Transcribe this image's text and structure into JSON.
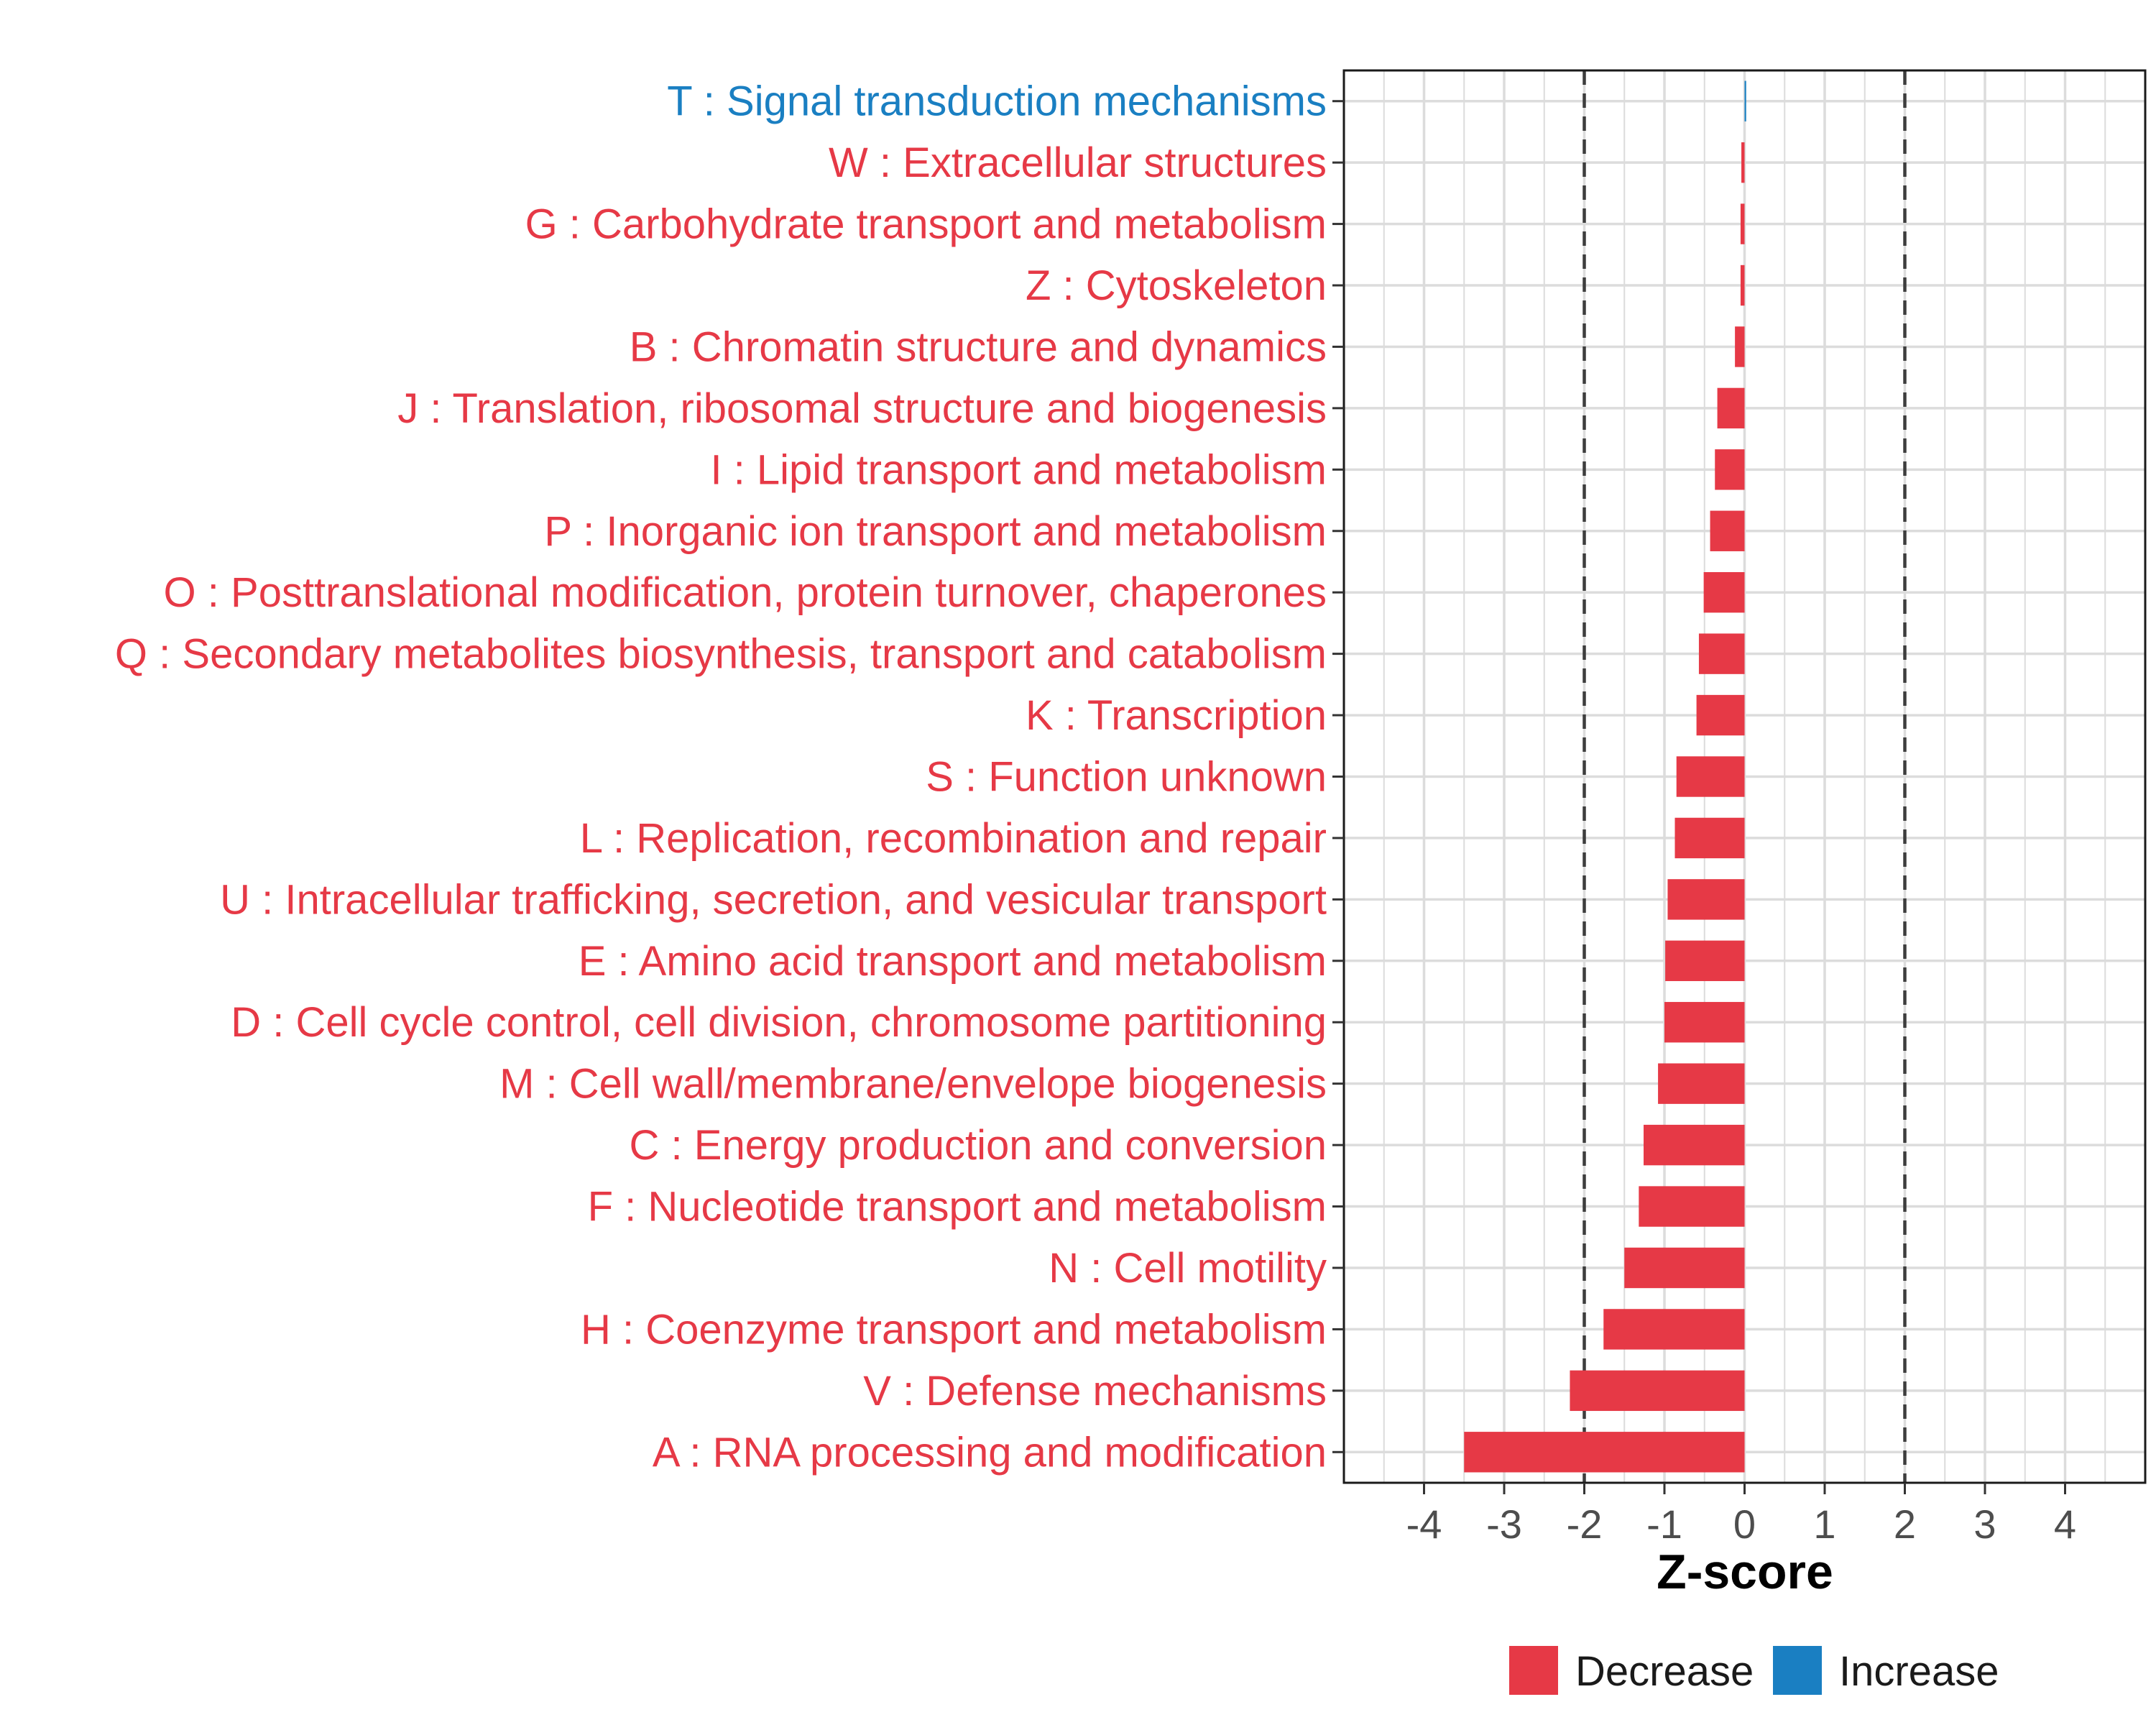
{
  "colors": {
    "decrease": "#e63946",
    "increase": "#1a7fc2",
    "grid": "#dcdcdc",
    "threshold_line": "#3d3d3d",
    "panel_border": "#1a1a1a"
  },
  "chart_data": {
    "type": "bar",
    "orientation": "horizontal",
    "title": "",
    "xlabel": "Z-score",
    "ylabel": "",
    "xlim": [
      -5,
      5
    ],
    "xticks": [
      -4,
      -3,
      -2,
      -1,
      0,
      1,
      2,
      3,
      4
    ],
    "xtick_labels": [
      "-4",
      "-3",
      "-2",
      "-1",
      "0",
      "1",
      "2",
      "3",
      "4"
    ],
    "threshold_lines": [
      -2,
      2
    ],
    "categories": [
      "T : Signal transduction mechanisms",
      "W : Extracellular structures",
      "G : Carbohydrate transport and metabolism",
      "Z : Cytoskeleton",
      "B : Chromatin structure and dynamics",
      "J : Translation, ribosomal structure and biogenesis",
      "I : Lipid transport and metabolism",
      "P : Inorganic ion transport and metabolism",
      "O : Posttranslational modification, protein turnover, chaperones",
      "Q : Secondary metabolites biosynthesis, transport and catabolism",
      "K : Transcription",
      "S : Function unknown",
      "L : Replication, recombination and repair",
      "U : Intracellular trafficking, secretion, and vesicular transport",
      "E : Amino acid transport and metabolism",
      "D : Cell cycle control, cell division, chromosome partitioning",
      "M : Cell wall/membrane/envelope biogenesis",
      "C : Energy production and conversion",
      "F : Nucleotide transport and metabolism",
      "N : Cell motility",
      "H : Coenzyme transport and metabolism",
      "V : Defense mechanisms",
      "A : RNA processing and modification"
    ],
    "values": [
      0.02,
      -0.04,
      -0.05,
      -0.05,
      -0.12,
      -0.34,
      -0.37,
      -0.43,
      -0.51,
      -0.57,
      -0.6,
      -0.85,
      -0.87,
      -0.96,
      -0.99,
      -1.0,
      -1.08,
      -1.26,
      -1.32,
      -1.5,
      -1.76,
      -2.18,
      -3.5
    ],
    "direction": [
      "Increase",
      "Decrease",
      "Decrease",
      "Decrease",
      "Decrease",
      "Decrease",
      "Decrease",
      "Decrease",
      "Decrease",
      "Decrease",
      "Decrease",
      "Decrease",
      "Decrease",
      "Decrease",
      "Decrease",
      "Decrease",
      "Decrease",
      "Decrease",
      "Decrease",
      "Decrease",
      "Decrease",
      "Decrease",
      "Decrease"
    ],
    "legend": {
      "position": "bottom",
      "entries": [
        {
          "label": "Decrease",
          "color_key": "decrease"
        },
        {
          "label": "Increase",
          "color_key": "increase"
        }
      ]
    },
    "grid": true
  }
}
